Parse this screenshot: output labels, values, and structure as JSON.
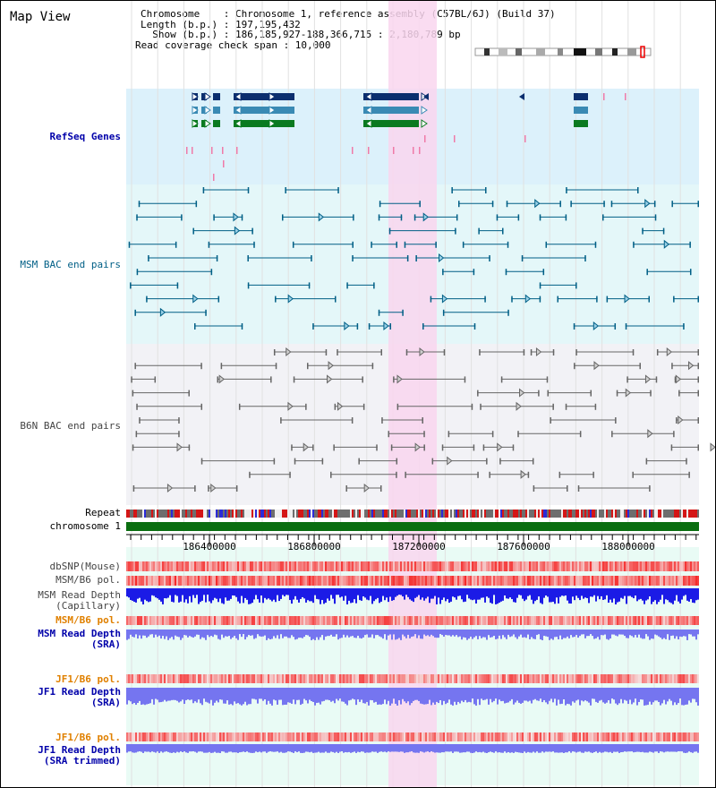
{
  "window": {
    "title": "Map View"
  },
  "info": {
    "chromosome_line": "Chromosome    : Chromosome 1, reference assembly (C57BL/6J) (Build 37)",
    "length_line": "Length (b.p.) : 197,195,432",
    "show_line": "  Show (b.p.) : 186,185,927-188,366,715 : 2,180,789 bp",
    "coverage_line": "Read coverage check span : 10,000"
  },
  "tracks": {
    "refseq": "RefSeq Genes",
    "msm_bac": "MSM BAC end pairs",
    "b6n_bac": "B6N BAC end pairs",
    "repeat": "Repeat",
    "chromosome": "chromosome 1",
    "dbsnp": "dbSNP(Mouse)",
    "msm_b6_pol_1": "MSM/B6 pol.",
    "msm_read_depth_cap": "MSM Read Depth\n(Capillary)",
    "msm_b6_pol_2": "MSM/B6 pol.",
    "msm_read_depth_sra": "MSM Read Depth\n(SRA)",
    "jf1_b6_pol_1": "JF1/B6 pol.",
    "jf1_read_depth_sra": "JF1 Read Depth\n(SRA)",
    "jf1_b6_pol_2": "JF1/B6 pol.",
    "jf1_read_depth_trim": "JF1 Read Depth\n(SRA trimmed)"
  },
  "axis": {
    "ticks": [
      "186400000",
      "186800000",
      "187200000",
      "187600000",
      "188000000"
    ]
  },
  "colors": {
    "highlight": "#f9d6ef",
    "refseq_bg": "#dcf1fb",
    "msm_bg": "#e4f7f9",
    "b6n_bg": "#f2f2f6",
    "gene_dark": "#0b2e6e",
    "gene_mid": "#3a8ab4",
    "gene_green": "#0a7a20",
    "msm_line": "#005f86",
    "b6n_line": "#666666",
    "chrom_green": "#0a6e10",
    "depth_blue": "#1b1be6",
    "depth_violet": "#7575f0"
  }
}
